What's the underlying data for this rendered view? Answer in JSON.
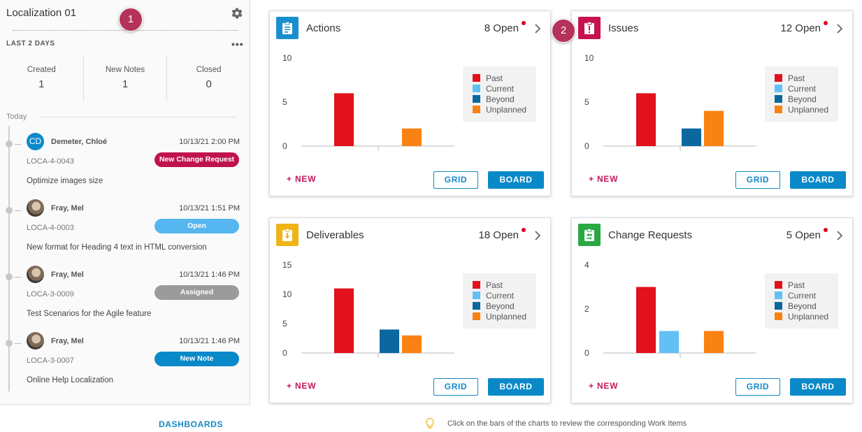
{
  "sidebar": {
    "project_title": "Localization 01",
    "callout_1": "1",
    "range_label": "LAST 2 DAYS",
    "more": "•••",
    "stats": [
      {
        "label": "Created",
        "value": "1"
      },
      {
        "label": "New Notes",
        "value": "1"
      },
      {
        "label": "Closed",
        "value": "0"
      }
    ],
    "today_label": "Today",
    "activities": [
      {
        "initials": "CD",
        "name": "Demeter, Chloé",
        "time": "10/13/21 2:00 PM",
        "id": "LOCA-4-0043",
        "badge": "New Change Request",
        "badge_color": "#c0124f",
        "desc": "Optimize images size"
      },
      {
        "initials": "",
        "name": "Fray, Mel",
        "time": "10/13/21 1:51 PM",
        "id": "LOCA-4-0003",
        "badge": "Open",
        "badge_color": "#55b6f0",
        "desc": "New format for Heading 4 text in HTML conversion"
      },
      {
        "initials": "",
        "name": "Fray, Mel",
        "time": "10/13/21 1:46 PM",
        "id": "LOCA-3-0009",
        "badge": "Assigned",
        "badge_color": "#9b9b9b",
        "desc": "Test Scenarios for the Agile feature"
      },
      {
        "initials": "",
        "name": "Fray, Mel",
        "time": "10/13/21 1:46 PM",
        "id": "LOCA-3-0007",
        "badge": "New Note",
        "badge_color": "#0a89c9",
        "desc": "Online Help Localization"
      }
    ],
    "dashboards_link": "DASHBOARDS"
  },
  "callout_2": "2",
  "colors": {
    "past": "#e2111b",
    "current": "#62c0f5",
    "beyond": "#0b679e",
    "unplanned": "#f98212",
    "accent": "#1589c4",
    "new": "#c2185b"
  },
  "legend_labels": [
    "Past",
    "Current",
    "Beyond",
    "Unplanned"
  ],
  "buttons": {
    "new": "+ NEW",
    "grid": "GRID",
    "board": "BOARD"
  },
  "cards": [
    {
      "title": "Actions",
      "open": "8 Open",
      "icon": "clipboard-icon",
      "icon_color": "#1a8fd0"
    },
    {
      "title": "Issues",
      "open": "12 Open",
      "icon": "exclamation-clipboard-icon",
      "icon_color": "#c6124d"
    },
    {
      "title": "Deliverables",
      "open": "18 Open",
      "icon": "download-clipboard-icon",
      "icon_color": "#f0b417"
    },
    {
      "title": "Change Requests",
      "open": "5 Open",
      "icon": "swap-clipboard-icon",
      "icon_color": "#2aa844"
    }
  ],
  "chart_data": [
    {
      "type": "bar",
      "title": "Actions",
      "categories": [
        "Past",
        "Current",
        "Beyond",
        "Unplanned"
      ],
      "values": [
        6,
        0,
        0,
        2
      ],
      "yticks": [
        0,
        5,
        10
      ],
      "ylim": [
        0,
        10
      ]
    },
    {
      "type": "bar",
      "title": "Issues",
      "categories": [
        "Past",
        "Current",
        "Beyond",
        "Unplanned"
      ],
      "values": [
        6,
        0,
        2,
        4
      ],
      "yticks": [
        0,
        5,
        10
      ],
      "ylim": [
        0,
        10
      ]
    },
    {
      "type": "bar",
      "title": "Deliverables",
      "categories": [
        "Past",
        "Current",
        "Beyond",
        "Unplanned"
      ],
      "values": [
        11,
        0,
        4,
        3
      ],
      "yticks": [
        0,
        5,
        10,
        15
      ],
      "ylim": [
        0,
        15
      ]
    },
    {
      "type": "bar",
      "title": "Change Requests",
      "categories": [
        "Past",
        "Current",
        "Beyond",
        "Unplanned"
      ],
      "values": [
        3,
        1,
        0,
        1
      ],
      "yticks": [
        0,
        2,
        4
      ],
      "ylim": [
        0,
        4
      ]
    }
  ],
  "hint": "Click on the bars of the charts to review the corresponding Work Items"
}
